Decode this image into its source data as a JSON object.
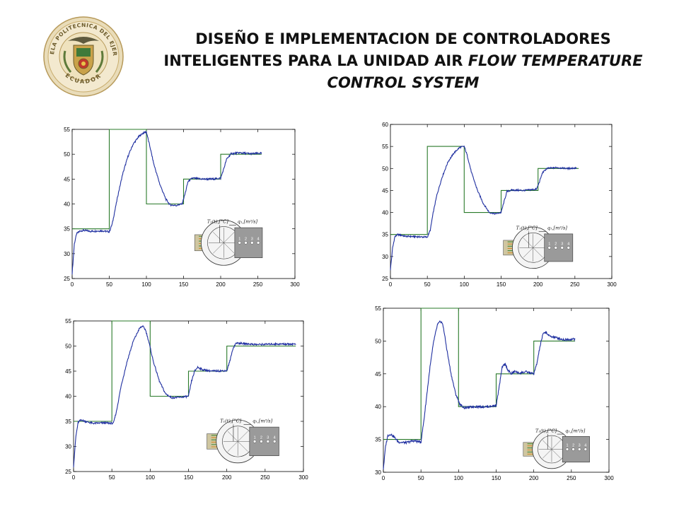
{
  "header": {
    "title_line1": "DISEÑO E IMPLEMENTACION DE CONTROLADORES",
    "title_line2_normal": "INTELIGENTES PARA LA UNIDAD AIR ",
    "title_line2_italic": "FLOW TEMPERATURE",
    "title_line3_italic": "CONTROL SYSTEM"
  },
  "logo": {
    "ring_top_text": "ESCUELA POLITECNICA DEL EJERCITO",
    "ring_bottom_text": "ECUADOR"
  },
  "colors": {
    "response": "#1f2fa0",
    "setpoint": "#2a7a2a",
    "frame": "#000000"
  },
  "inset": {
    "temp_label": "T₁(t),[°C]",
    "flow_label": "q₁,[m³/s]",
    "ports": [
      "1",
      "2",
      "3",
      "4"
    ]
  },
  "chart_data": [
    {
      "type": "line",
      "xlim": [
        0,
        300
      ],
      "ylim": [
        25,
        55
      ],
      "xticks": [
        0,
        50,
        100,
        150,
        200,
        250,
        300
      ],
      "yticks": [
        25,
        30,
        35,
        40,
        45,
        50,
        55
      ],
      "series": [
        {
          "x": [
            0,
            50,
            50,
            100,
            100,
            150,
            150,
            200,
            200,
            255
          ],
          "y": [
            35,
            35,
            55,
            55,
            40,
            40,
            45,
            45,
            50,
            50
          ]
        },
        {
          "x": [
            0,
            3,
            6,
            10,
            15,
            25,
            40,
            50,
            54,
            58,
            62,
            68,
            75,
            82,
            90,
            96,
            100,
            104,
            110,
            118,
            126,
            132,
            140,
            148,
            152,
            156,
            162,
            175,
            190,
            200,
            204,
            208,
            214,
            225,
            240,
            255
          ],
          "y": [
            26,
            32,
            34,
            34.5,
            34.7,
            34.5,
            34.6,
            34.4,
            36,
            39,
            42,
            46,
            49.5,
            52,
            53.6,
            54.3,
            54.5,
            52,
            48,
            44,
            41,
            39.8,
            39.7,
            40,
            42,
            44.5,
            45.2,
            45,
            45,
            45.2,
            47,
            49,
            50.1,
            50.3,
            50.1,
            50.2
          ]
        }
      ]
    },
    {
      "type": "line",
      "xlim": [
        0,
        300
      ],
      "ylim": [
        25,
        60
      ],
      "xticks": [
        0,
        50,
        100,
        150,
        200,
        250,
        300
      ],
      "yticks": [
        25,
        30,
        35,
        40,
        45,
        50,
        55,
        60
      ],
      "series": [
        {
          "x": [
            0,
            50,
            50,
            100,
            100,
            150,
            150,
            200,
            200,
            255
          ],
          "y": [
            35,
            35,
            55,
            55,
            40,
            40,
            45,
            45,
            50,
            50
          ]
        },
        {
          "x": [
            0,
            3,
            6,
            10,
            20,
            35,
            50,
            54,
            58,
            63,
            70,
            78,
            86,
            94,
            100,
            104,
            110,
            118,
            126,
            134,
            142,
            150,
            154,
            158,
            165,
            180,
            198,
            202,
            206,
            212,
            225,
            240,
            252
          ],
          "y": [
            27,
            32,
            34.5,
            35,
            34.6,
            34.5,
            34.4,
            36,
            40,
            44,
            48,
            51.5,
            53.5,
            54.8,
            55,
            53,
            49,
            45,
            42,
            40,
            39.7,
            40,
            42.5,
            44.8,
            45.1,
            45,
            45.3,
            47,
            49,
            50,
            50.2,
            50,
            50.1
          ]
        }
      ]
    },
    {
      "type": "line",
      "xlim": [
        0,
        300
      ],
      "ylim": [
        25,
        55
      ],
      "xticks": [
        0,
        50,
        100,
        150,
        200,
        250,
        300
      ],
      "yticks": [
        25,
        30,
        35,
        40,
        45,
        50,
        55
      ],
      "series": [
        {
          "x": [
            0,
            50,
            50,
            100,
            100,
            150,
            150,
            200,
            200,
            290
          ],
          "y": [
            35,
            35,
            55,
            55,
            40,
            40,
            45,
            45,
            50,
            50
          ]
        },
        {
          "x": [
            0,
            3,
            6,
            10,
            15,
            25,
            40,
            52,
            56,
            62,
            70,
            78,
            86,
            90,
            94,
            98,
            104,
            112,
            120,
            128,
            140,
            150,
            154,
            158,
            162,
            168,
            180,
            200,
            204,
            208,
            212,
            220,
            240,
            260,
            290
          ],
          "y": [
            26,
            32,
            34.8,
            35.3,
            35,
            34.6,
            34.7,
            34.6,
            37,
            42,
            47,
            51,
            53.5,
            54,
            53.2,
            51,
            47,
            43,
            40.5,
            39.7,
            39.8,
            40,
            43,
            45,
            45.8,
            45.3,
            45,
            45.1,
            47,
            49.5,
            50.6,
            50.5,
            50.3,
            50.4,
            50.4
          ]
        }
      ]
    },
    {
      "type": "line",
      "xlim": [
        0,
        300
      ],
      "ylim": [
        30,
        55
      ],
      "xticks": [
        0,
        50,
        100,
        150,
        200,
        250,
        300
      ],
      "yticks": [
        30,
        35,
        40,
        45,
        50,
        55
      ],
      "series": [
        {
          "x": [
            0,
            50,
            50,
            100,
            100,
            150,
            150,
            200,
            200,
            255
          ],
          "y": [
            35,
            35,
            55,
            55,
            40,
            40,
            45,
            45,
            50,
            50
          ]
        },
        {
          "x": [
            0,
            3,
            6,
            10,
            15,
            20,
            30,
            40,
            50,
            54,
            58,
            62,
            67,
            72,
            76,
            78,
            80,
            84,
            90,
            96,
            102,
            108,
            120,
            140,
            150,
            154,
            158,
            162,
            166,
            170,
            175,
            180,
            190,
            200,
            204,
            208,
            212,
            216,
            220,
            230,
            240,
            255
          ],
          "y": [
            30.5,
            34,
            35.6,
            35.8,
            35.3,
            34.6,
            34.5,
            34.8,
            34.6,
            38,
            42,
            46,
            50,
            52.5,
            53,
            52.8,
            52,
            49,
            45,
            42,
            40.3,
            39.8,
            40,
            40,
            40.2,
            43,
            46,
            46.5,
            45.5,
            45,
            45.4,
            45.1,
            45.3,
            45,
            46.5,
            49,
            51,
            51.4,
            50.8,
            50.5,
            50.2,
            50.3
          ]
        }
      ]
    }
  ]
}
